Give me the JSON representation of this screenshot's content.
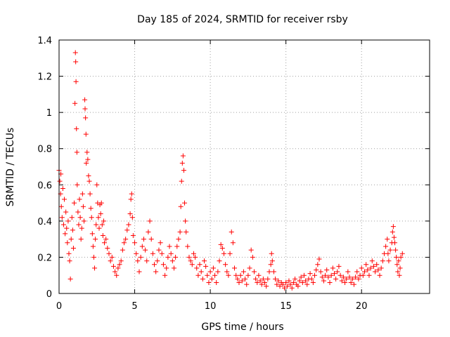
{
  "chart_data": {
    "type": "scatter",
    "title": "Day 185 of 2024, SRMTID for receiver rsby",
    "xlabel": "GPS time / hours",
    "ylabel": "SRMTID / TECUs",
    "xlim": [
      0,
      24.5
    ],
    "ylim": [
      0,
      1.4
    ],
    "xticks": [
      0,
      5,
      10,
      15,
      20
    ],
    "xtick_labels": [
      "0",
      "5",
      "10",
      "15",
      "20"
    ],
    "yticks": [
      0,
      0.2,
      0.4,
      0.6,
      0.8,
      1.0,
      1.2,
      1.4
    ],
    "ytick_labels": [
      "0",
      "0.2",
      "0.4",
      "0.6",
      "0.8",
      "1",
      "1.2",
      "1.4"
    ],
    "grid": true,
    "marker": "plus",
    "color": "#ff0000",
    "series": [
      {
        "name": "SRMTID",
        "points": [
          [
            0.0,
            0.68
          ],
          [
            0.05,
            0.62
          ],
          [
            0.1,
            0.55
          ],
          [
            0.12,
            0.66
          ],
          [
            0.15,
            0.48
          ],
          [
            0.2,
            0.42
          ],
          [
            0.25,
            0.58
          ],
          [
            0.3,
            0.38
          ],
          [
            0.35,
            0.52
          ],
          [
            0.4,
            0.33
          ],
          [
            0.45,
            0.45
          ],
          [
            0.5,
            0.36
          ],
          [
            0.55,
            0.28
          ],
          [
            0.6,
            0.4
          ],
          [
            0.65,
            0.22
          ],
          [
            0.7,
            0.18
          ],
          [
            0.75,
            0.08
          ],
          [
            0.8,
            0.3
          ],
          [
            0.85,
            0.42
          ],
          [
            0.9,
            0.35
          ],
          [
            0.95,
            0.25
          ],
          [
            1.0,
            0.5
          ],
          [
            1.05,
            1.05
          ],
          [
            1.08,
            1.33
          ],
          [
            1.1,
            1.28
          ],
          [
            1.12,
            1.17
          ],
          [
            1.15,
            0.91
          ],
          [
            1.18,
            0.78
          ],
          [
            1.2,
            0.6
          ],
          [
            1.25,
            0.45
          ],
          [
            1.3,
            0.38
          ],
          [
            1.35,
            0.52
          ],
          [
            1.4,
            0.42
          ],
          [
            1.45,
            0.3
          ],
          [
            1.5,
            0.36
          ],
          [
            1.55,
            0.55
          ],
          [
            1.6,
            0.48
          ],
          [
            1.65,
            0.4
          ],
          [
            1.7,
            1.07
          ],
          [
            1.72,
            1.02
          ],
          [
            1.75,
            0.97
          ],
          [
            1.78,
            0.88
          ],
          [
            1.8,
            0.72
          ],
          [
            1.85,
            0.78
          ],
          [
            1.9,
            0.74
          ],
          [
            1.95,
            0.65
          ],
          [
            2.0,
            0.62
          ],
          [
            2.05,
            0.55
          ],
          [
            2.1,
            0.47
          ],
          [
            2.15,
            0.42
          ],
          [
            2.2,
            0.33
          ],
          [
            2.25,
            0.26
          ],
          [
            2.3,
            0.2
          ],
          [
            2.35,
            0.14
          ],
          [
            2.4,
            0.3
          ],
          [
            2.45,
            0.38
          ],
          [
            2.5,
            0.6
          ],
          [
            2.55,
            0.5
          ],
          [
            2.6,
            0.42
          ],
          [
            2.65,
            0.36
          ],
          [
            2.7,
            0.49
          ],
          [
            2.75,
            0.44
          ],
          [
            2.8,
            0.5
          ],
          [
            2.85,
            0.38
          ],
          [
            2.9,
            0.32
          ],
          [
            2.95,
            0.4
          ],
          [
            3.0,
            0.28
          ],
          [
            3.1,
            0.3
          ],
          [
            3.2,
            0.25
          ],
          [
            3.3,
            0.22
          ],
          [
            3.4,
            0.18
          ],
          [
            3.5,
            0.2
          ],
          [
            3.6,
            0.15
          ],
          [
            3.7,
            0.12
          ],
          [
            3.8,
            0.1
          ],
          [
            3.9,
            0.14
          ],
          [
            4.0,
            0.16
          ],
          [
            4.1,
            0.18
          ],
          [
            4.2,
            0.24
          ],
          [
            4.3,
            0.28
          ],
          [
            4.4,
            0.3
          ],
          [
            4.5,
            0.35
          ],
          [
            4.6,
            0.38
          ],
          [
            4.7,
            0.44
          ],
          [
            4.75,
            0.52
          ],
          [
            4.8,
            0.55
          ],
          [
            4.85,
            0.42
          ],
          [
            4.9,
            0.32
          ],
          [
            5.0,
            0.28
          ],
          [
            5.1,
            0.22
          ],
          [
            5.2,
            0.18
          ],
          [
            5.3,
            0.12
          ],
          [
            5.4,
            0.2
          ],
          [
            5.5,
            0.26
          ],
          [
            5.6,
            0.3
          ],
          [
            5.7,
            0.24
          ],
          [
            5.8,
            0.18
          ],
          [
            5.9,
            0.34
          ],
          [
            6.0,
            0.4
          ],
          [
            6.1,
            0.3
          ],
          [
            6.2,
            0.22
          ],
          [
            6.3,
            0.16
          ],
          [
            6.4,
            0.12
          ],
          [
            6.5,
            0.18
          ],
          [
            6.6,
            0.24
          ],
          [
            6.7,
            0.28
          ],
          [
            6.8,
            0.22
          ],
          [
            6.9,
            0.16
          ],
          [
            7.0,
            0.1
          ],
          [
            7.1,
            0.14
          ],
          [
            7.2,
            0.2
          ],
          [
            7.3,
            0.26
          ],
          [
            7.4,
            0.22
          ],
          [
            7.5,
            0.18
          ],
          [
            7.6,
            0.14
          ],
          [
            7.7,
            0.2
          ],
          [
            7.8,
            0.26
          ],
          [
            7.9,
            0.3
          ],
          [
            8.0,
            0.34
          ],
          [
            8.05,
            0.48
          ],
          [
            8.1,
            0.62
          ],
          [
            8.15,
            0.72
          ],
          [
            8.2,
            0.76
          ],
          [
            8.25,
            0.68
          ],
          [
            8.3,
            0.5
          ],
          [
            8.35,
            0.4
          ],
          [
            8.4,
            0.34
          ],
          [
            8.5,
            0.26
          ],
          [
            8.6,
            0.2
          ],
          [
            8.7,
            0.18
          ],
          [
            8.8,
            0.16
          ],
          [
            8.9,
            0.22
          ],
          [
            9.0,
            0.2
          ],
          [
            9.1,
            0.14
          ],
          [
            9.2,
            0.1
          ],
          [
            9.3,
            0.16
          ],
          [
            9.4,
            0.12
          ],
          [
            9.5,
            0.08
          ],
          [
            9.6,
            0.18
          ],
          [
            9.7,
            0.15
          ],
          [
            9.8,
            0.1
          ],
          [
            9.9,
            0.06
          ],
          [
            10.0,
            0.12
          ],
          [
            10.1,
            0.08
          ],
          [
            10.2,
            0.14
          ],
          [
            10.3,
            0.1
          ],
          [
            10.4,
            0.06
          ],
          [
            10.5,
            0.12
          ],
          [
            10.6,
            0.18
          ],
          [
            10.7,
            0.27
          ],
          [
            10.8,
            0.25
          ],
          [
            10.9,
            0.22
          ],
          [
            11.0,
            0.16
          ],
          [
            11.1,
            0.12
          ],
          [
            11.2,
            0.1
          ],
          [
            11.3,
            0.22
          ],
          [
            11.4,
            0.34
          ],
          [
            11.5,
            0.28
          ],
          [
            11.6,
            0.14
          ],
          [
            11.7,
            0.1
          ],
          [
            11.8,
            0.08
          ],
          [
            11.9,
            0.06
          ],
          [
            12.0,
            0.1
          ],
          [
            12.1,
            0.07
          ],
          [
            12.2,
            0.12
          ],
          [
            12.3,
            0.08
          ],
          [
            12.4,
            0.05
          ],
          [
            12.5,
            0.1
          ],
          [
            12.6,
            0.14
          ],
          [
            12.7,
            0.24
          ],
          [
            12.8,
            0.2
          ],
          [
            12.9,
            0.12
          ],
          [
            13.0,
            0.08
          ],
          [
            13.1,
            0.06
          ],
          [
            13.2,
            0.1
          ],
          [
            13.3,
            0.07
          ],
          [
            13.4,
            0.05
          ],
          [
            13.5,
            0.08
          ],
          [
            13.6,
            0.06
          ],
          [
            13.7,
            0.04
          ],
          [
            13.8,
            0.08
          ],
          [
            13.9,
            0.12
          ],
          [
            14.0,
            0.16
          ],
          [
            14.05,
            0.22
          ],
          [
            14.1,
            0.18
          ],
          [
            14.2,
            0.12
          ],
          [
            14.3,
            0.08
          ],
          [
            14.4,
            0.05
          ],
          [
            14.5,
            0.07
          ],
          [
            14.6,
            0.04
          ],
          [
            14.7,
            0.06
          ],
          [
            14.8,
            0.05
          ],
          [
            14.9,
            0.03
          ],
          [
            15.0,
            0.06
          ],
          [
            15.1,
            0.04
          ],
          [
            15.2,
            0.07
          ],
          [
            15.3,
            0.05
          ],
          [
            15.4,
            0.03
          ],
          [
            15.5,
            0.06
          ],
          [
            15.6,
            0.08
          ],
          [
            15.7,
            0.05
          ],
          [
            15.8,
            0.04
          ],
          [
            15.9,
            0.07
          ],
          [
            16.0,
            0.09
          ],
          [
            16.1,
            0.06
          ],
          [
            16.2,
            0.1
          ],
          [
            16.3,
            0.07
          ],
          [
            16.4,
            0.05
          ],
          [
            16.5,
            0.08
          ],
          [
            16.6,
            0.11
          ],
          [
            16.7,
            0.08
          ],
          [
            16.8,
            0.06
          ],
          [
            16.9,
            0.1
          ],
          [
            17.0,
            0.13
          ],
          [
            17.1,
            0.16
          ],
          [
            17.2,
            0.19
          ],
          [
            17.3,
            0.12
          ],
          [
            17.4,
            0.09
          ],
          [
            17.5,
            0.07
          ],
          [
            17.6,
            0.1
          ],
          [
            17.7,
            0.13
          ],
          [
            17.8,
            0.09
          ],
          [
            17.9,
            0.06
          ],
          [
            18.0,
            0.1
          ],
          [
            18.1,
            0.14
          ],
          [
            18.2,
            0.11
          ],
          [
            18.3,
            0.08
          ],
          [
            18.4,
            0.12
          ],
          [
            18.5,
            0.15
          ],
          [
            18.6,
            0.1
          ],
          [
            18.7,
            0.07
          ],
          [
            18.8,
            0.09
          ],
          [
            18.9,
            0.06
          ],
          [
            19.0,
            0.08
          ],
          [
            19.1,
            0.12
          ],
          [
            19.2,
            0.09
          ],
          [
            19.3,
            0.06
          ],
          [
            19.4,
            0.08
          ],
          [
            19.5,
            0.05
          ],
          [
            19.6,
            0.09
          ],
          [
            19.7,
            0.12
          ],
          [
            19.8,
            0.08
          ],
          [
            19.9,
            0.1
          ],
          [
            20.0,
            0.14
          ],
          [
            20.1,
            0.1
          ],
          [
            20.2,
            0.12
          ],
          [
            20.3,
            0.16
          ],
          [
            20.4,
            0.13
          ],
          [
            20.5,
            0.1
          ],
          [
            20.6,
            0.14
          ],
          [
            20.7,
            0.18
          ],
          [
            20.8,
            0.15
          ],
          [
            20.9,
            0.12
          ],
          [
            21.0,
            0.16
          ],
          [
            21.1,
            0.13
          ],
          [
            21.2,
            0.1
          ],
          [
            21.3,
            0.14
          ],
          [
            21.4,
            0.18
          ],
          [
            21.5,
            0.22
          ],
          [
            21.6,
            0.26
          ],
          [
            21.7,
            0.3
          ],
          [
            21.75,
            0.22
          ],
          [
            21.8,
            0.18
          ],
          [
            21.9,
            0.24
          ],
          [
            22.0,
            0.28
          ],
          [
            22.05,
            0.34
          ],
          [
            22.1,
            0.37
          ],
          [
            22.15,
            0.31
          ],
          [
            22.2,
            0.28
          ],
          [
            22.25,
            0.24
          ],
          [
            22.3,
            0.2
          ],
          [
            22.35,
            0.16
          ],
          [
            22.4,
            0.12
          ],
          [
            22.45,
            0.18
          ],
          [
            22.5,
            0.1
          ],
          [
            22.55,
            0.14
          ],
          [
            22.6,
            0.2
          ],
          [
            22.7,
            0.22
          ]
        ]
      }
    ]
  }
}
